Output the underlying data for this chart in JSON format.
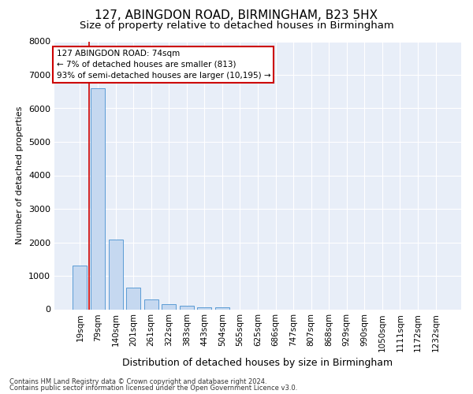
{
  "title1": "127, ABINGDON ROAD, BIRMINGHAM, B23 5HX",
  "title2": "Size of property relative to detached houses in Birmingham",
  "xlabel": "Distribution of detached houses by size in Birmingham",
  "ylabel": "Number of detached properties",
  "categories": [
    "19sqm",
    "79sqm",
    "140sqm",
    "201sqm",
    "261sqm",
    "322sqm",
    "383sqm",
    "443sqm",
    "504sqm",
    "565sqm",
    "625sqm",
    "686sqm",
    "747sqm",
    "807sqm",
    "868sqm",
    "929sqm",
    "990sqm",
    "1050sqm",
    "1111sqm",
    "1172sqm",
    "1232sqm"
  ],
  "values": [
    1300,
    6600,
    2080,
    650,
    300,
    150,
    100,
    65,
    65,
    0,
    0,
    0,
    0,
    0,
    0,
    0,
    0,
    0,
    0,
    0,
    0
  ],
  "bar_color": "#c5d8f0",
  "bar_edge_color": "#5b9bd5",
  "highlight_line_color": "#cc0000",
  "ylim": [
    0,
    8000
  ],
  "yticks": [
    0,
    1000,
    2000,
    3000,
    4000,
    5000,
    6000,
    7000,
    8000
  ],
  "annotation_text": "127 ABINGDON ROAD: 74sqm\n← 7% of detached houses are smaller (813)\n93% of semi-detached houses are larger (10,195) →",
  "annotation_box_facecolor": "#ffffff",
  "annotation_box_edgecolor": "#cc0000",
  "footnote1": "Contains HM Land Registry data © Crown copyright and database right 2024.",
  "footnote2": "Contains public sector information licensed under the Open Government Licence v3.0.",
  "fig_facecolor": "#ffffff",
  "ax_facecolor": "#e8eef8",
  "grid_color": "#ffffff",
  "title1_fontsize": 11,
  "title2_fontsize": 9.5,
  "xlabel_fontsize": 9,
  "ylabel_fontsize": 8,
  "tick_fontsize": 7.5,
  "annotation_fontsize": 7.5,
  "footnote_fontsize": 6
}
